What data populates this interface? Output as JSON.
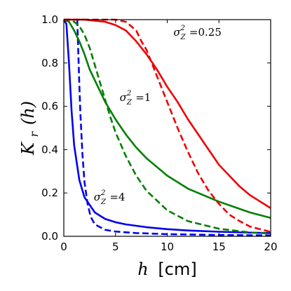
{
  "chart_data": {
    "type": "line",
    "xlabel_var": "h",
    "xlabel_unit": "[cm]",
    "ylabel_var": "K",
    "ylabel_sub": "r",
    "ylabel_arg": "(h)",
    "xlim": [
      0,
      20
    ],
    "ylim": [
      0,
      1
    ],
    "xticks": [
      0,
      5,
      10,
      15,
      20
    ],
    "yticks": [
      0.0,
      0.2,
      0.4,
      0.6,
      0.8,
      1.0
    ],
    "xtick_labels": [
      "0",
      "5",
      "10",
      "15",
      "20"
    ],
    "ytick_labels": [
      "0.0",
      "0.2",
      "0.4",
      "0.6",
      "0.8",
      "1.0"
    ],
    "grid": false,
    "colors": {
      "blue": "#0000ee",
      "green": "#008000",
      "red": "#ee0000"
    },
    "series": [
      {
        "color": "blue",
        "style": "solid",
        "x": [
          0,
          0.25,
          0.5,
          0.75,
          1,
          1.5,
          2,
          3,
          4,
          5,
          6,
          8,
          10,
          12,
          15,
          18,
          20
        ],
        "y": [
          1.0,
          0.98,
          0.8,
          0.58,
          0.42,
          0.26,
          0.18,
          0.11,
          0.08,
          0.065,
          0.055,
          0.042,
          0.033,
          0.027,
          0.021,
          0.017,
          0.015
        ]
      },
      {
        "color": "blue",
        "style": "dashed",
        "x": [
          1.3,
          1.4,
          1.5,
          1.6,
          1.8,
          2.0,
          2.3,
          2.6,
          3,
          4,
          5,
          7,
          10,
          15,
          20
        ],
        "y": [
          1.0,
          0.85,
          0.7,
          0.57,
          0.38,
          0.25,
          0.15,
          0.09,
          0.055,
          0.03,
          0.022,
          0.015,
          0.01,
          0.006,
          0.004
        ]
      },
      {
        "color": "green",
        "style": "solid",
        "x": [
          0,
          0.5,
          1,
          1.5,
          2,
          2.5,
          3,
          4,
          5,
          6,
          7,
          8,
          10,
          12,
          15,
          18,
          20
        ],
        "y": [
          1.0,
          0.99,
          0.95,
          0.9,
          0.84,
          0.77,
          0.72,
          0.62,
          0.54,
          0.47,
          0.41,
          0.36,
          0.28,
          0.22,
          0.16,
          0.11,
          0.085
        ]
      },
      {
        "color": "green",
        "style": "dashed",
        "x": [
          0,
          0.5,
          1,
          1.5,
          2,
          2.5,
          3,
          3.5,
          4,
          4.5,
          5,
          6,
          7,
          8,
          10,
          12,
          15,
          18,
          20
        ],
        "y": [
          1.0,
          1.0,
          0.99,
          0.97,
          0.93,
          0.87,
          0.79,
          0.71,
          0.63,
          0.55,
          0.48,
          0.37,
          0.28,
          0.21,
          0.12,
          0.07,
          0.035,
          0.018,
          0.012
        ]
      },
      {
        "color": "red",
        "style": "solid",
        "x": [
          0,
          2,
          4,
          5,
          6,
          7,
          8,
          9,
          10,
          11,
          12,
          13,
          14,
          15,
          16,
          17,
          18,
          19,
          20
        ],
        "y": [
          1.0,
          1.0,
          0.99,
          0.975,
          0.95,
          0.9,
          0.84,
          0.77,
          0.69,
          0.62,
          0.54,
          0.47,
          0.4,
          0.33,
          0.28,
          0.23,
          0.19,
          0.16,
          0.13
        ]
      },
      {
        "color": "red",
        "style": "dashed",
        "x": [
          0,
          2,
          4,
          5,
          6,
          6.5,
          7,
          7.5,
          8,
          8.5,
          9,
          10,
          11,
          12,
          13,
          14,
          15,
          16,
          17,
          18,
          20
        ],
        "y": [
          1.0,
          1.0,
          1.0,
          1.0,
          0.99,
          0.97,
          0.95,
          0.9,
          0.86,
          0.8,
          0.74,
          0.62,
          0.5,
          0.39,
          0.29,
          0.21,
          0.15,
          0.1,
          0.07,
          0.045,
          0.02
        ]
      }
    ],
    "annotations": [
      {
        "prefix": "σ",
        "sub": "Z",
        "sup": "2",
        "value": "=0.25",
        "x": 10.6,
        "y": 0.925
      },
      {
        "prefix": "σ",
        "sub": "Z",
        "sup": "2",
        "value": "=1",
        "x": 5.4,
        "y": 0.625
      },
      {
        "prefix": "σ",
        "sub": "Z",
        "sup": "2",
        "value": "=4",
        "x": 2.9,
        "y": 0.165
      }
    ]
  }
}
